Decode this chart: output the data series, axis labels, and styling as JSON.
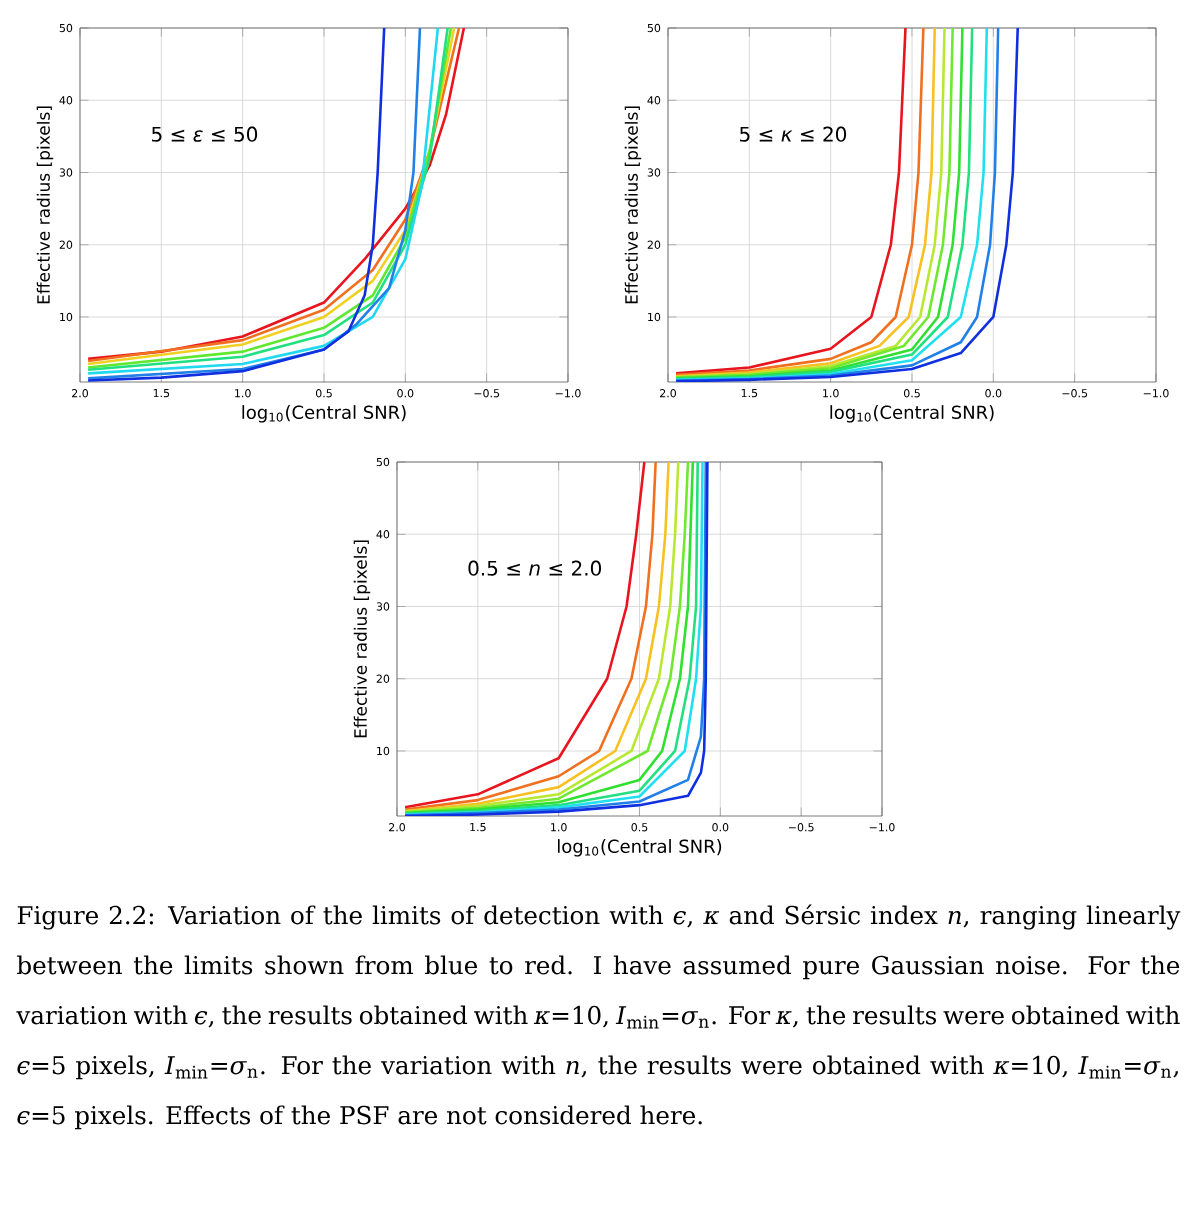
{
  "chart_data": [
    {
      "type": "line",
      "xlabel": "log$_{10}$(Central SNR)",
      "ylabel": "Effective radius [pixels]",
      "annotations": [
        "5 ≤ *ε* ≤ 50"
      ],
      "xlim": [
        2.0,
        -1.0
      ],
      "ylim": [
        1,
        50
      ],
      "xticks": [
        {
          "value": 2.0,
          "label": "2.0"
        },
        {
          "value": 1.5,
          "label": "1.5"
        },
        {
          "value": 1.0,
          "label": "1.0"
        },
        {
          "value": 0.5,
          "label": "0.5"
        },
        {
          "value": 0.0,
          "label": "0.0"
        },
        {
          "value": -0.5,
          "label": "−0.5"
        },
        {
          "value": -1.0,
          "label": "−1.0"
        }
      ],
      "yticks": [
        10,
        20,
        30,
        40,
        50
      ],
      "grid": true,
      "marker": "none",
      "series": [
        {
          "color": "#e8141e",
          "x": [
            1.95,
            1.5,
            1.0,
            0.5,
            0.25,
            0.0,
            -0.15,
            -0.25,
            -0.36
          ],
          "values": [
            4.2,
            5.2,
            7.3,
            12,
            18,
            25,
            31,
            38,
            50
          ]
        },
        {
          "color": "#f07020",
          "x": [
            1.95,
            1.0,
            0.5,
            0.2,
            0.0,
            -0.15,
            -0.33
          ],
          "values": [
            3.9,
            6.8,
            11,
            16.5,
            23.5,
            33,
            50
          ]
        },
        {
          "color": "#f0d020",
          "x": [
            1.95,
            1.0,
            0.5,
            0.2,
            0.0,
            -0.15,
            -0.3
          ],
          "values": [
            3.5,
            6.2,
            10,
            15,
            22,
            33,
            50
          ]
        },
        {
          "color": "#60e830",
          "x": [
            1.95,
            1.0,
            0.5,
            0.2,
            0.0,
            -0.15,
            -0.28
          ],
          "values": [
            3.0,
            5.2,
            8.5,
            13,
            21,
            33,
            50
          ]
        },
        {
          "color": "#20e080",
          "x": [
            1.95,
            1.0,
            0.5,
            0.2,
            0.0,
            -0.15,
            -0.26
          ],
          "values": [
            2.7,
            4.5,
            7.5,
            12,
            20,
            32,
            50
          ]
        },
        {
          "color": "#20d8f0",
          "x": [
            1.95,
            1.0,
            0.5,
            0.2,
            0.0,
            -0.1,
            -0.2
          ],
          "values": [
            2.2,
            3.5,
            6,
            10,
            18,
            28,
            50
          ]
        },
        {
          "color": "#2080e8",
          "x": [
            1.95,
            1.0,
            0.5,
            0.3,
            0.1,
            0.0,
            -0.05,
            -0.09
          ],
          "values": [
            1.5,
            2.8,
            5.5,
            9,
            14,
            22,
            30,
            50
          ]
        },
        {
          "color": "#1030e0",
          "x": [
            1.95,
            1.5,
            1.0,
            0.5,
            0.35,
            0.25,
            0.2,
            0.17,
            0.13
          ],
          "values": [
            1.2,
            1.6,
            2.5,
            5.5,
            8,
            13,
            20,
            30,
            50
          ]
        }
      ]
    },
    {
      "type": "line",
      "xlabel": "log$_{10}$(Central SNR)",
      "ylabel": "Effective radius [pixels]",
      "annotations": [
        "5 ≤ *κ* ≤ 20"
      ],
      "xlim": [
        2.0,
        -1.0
      ],
      "ylim": [
        1,
        50
      ],
      "xticks": [
        {
          "value": 2.0,
          "label": "2.0"
        },
        {
          "value": 1.5,
          "label": "1.5"
        },
        {
          "value": 1.0,
          "label": "1.0"
        },
        {
          "value": 0.5,
          "label": "0.5"
        },
        {
          "value": 0.0,
          "label": "0.0"
        },
        {
          "value": -0.5,
          "label": "−0.5"
        },
        {
          "value": -1.0,
          "label": "−1.0"
        }
      ],
      "yticks": [
        10,
        20,
        30,
        40,
        50
      ],
      "grid": true,
      "marker": "none",
      "series": [
        {
          "color": "#e8141e",
          "x": [
            1.95,
            1.5,
            1.0,
            0.75,
            0.63,
            0.58,
            0.54
          ],
          "values": [
            2.2,
            3.0,
            5.6,
            10,
            20,
            30,
            50
          ]
        },
        {
          "color": "#f07020",
          "x": [
            1.95,
            1.5,
            1.0,
            0.75,
            0.6,
            0.5,
            0.46,
            0.43
          ],
          "values": [
            2.0,
            2.6,
            4.2,
            6.5,
            10,
            20,
            30,
            50
          ]
        },
        {
          "color": "#f8c020",
          "x": [
            1.95,
            1.5,
            1.0,
            0.7,
            0.52,
            0.42,
            0.38,
            0.36
          ],
          "values": [
            1.8,
            2.3,
            3.6,
            6,
            10,
            20,
            30,
            50
          ]
        },
        {
          "color": "#b8e830",
          "x": [
            1.95,
            1.5,
            1.0,
            0.6,
            0.45,
            0.36,
            0.32,
            0.3
          ],
          "values": [
            1.7,
            2.1,
            3.2,
            6,
            10,
            20,
            30,
            50
          ]
        },
        {
          "color": "#70e830",
          "x": [
            1.95,
            1.5,
            1.0,
            0.55,
            0.4,
            0.31,
            0.27,
            0.25
          ],
          "values": [
            1.6,
            2.0,
            2.9,
            6,
            10,
            20,
            30,
            50
          ]
        },
        {
          "color": "#30e030",
          "x": [
            1.95,
            1.5,
            1.0,
            0.5,
            0.34,
            0.25,
            0.21,
            0.19
          ],
          "values": [
            1.5,
            1.8,
            2.6,
            5.5,
            10,
            20,
            30,
            50
          ]
        },
        {
          "color": "#20e080",
          "x": [
            1.95,
            1.5,
            1.0,
            0.5,
            0.28,
            0.19,
            0.15,
            0.13
          ],
          "values": [
            1.4,
            1.7,
            2.4,
            4.8,
            10,
            20,
            30,
            50
          ]
        },
        {
          "color": "#20e0f0",
          "x": [
            1.95,
            1.5,
            1.0,
            0.5,
            0.2,
            0.1,
            0.06,
            0.04
          ],
          "values": [
            1.3,
            1.5,
            2.1,
            4,
            10,
            20,
            30,
            50
          ]
        },
        {
          "color": "#2080e8",
          "x": [
            1.95,
            1.5,
            1.0,
            0.5,
            0.2,
            0.1,
            0.02,
            -0.01,
            -0.03
          ],
          "values": [
            1.2,
            1.4,
            1.9,
            3.3,
            6.5,
            10,
            20,
            30,
            50
          ]
        },
        {
          "color": "#1030e0",
          "x": [
            1.95,
            1.5,
            1.0,
            0.5,
            0.2,
            0.0,
            -0.08,
            -0.12,
            -0.15
          ],
          "values": [
            1.1,
            1.3,
            1.7,
            2.8,
            5,
            10,
            20,
            30,
            50
          ]
        }
      ]
    },
    {
      "type": "line",
      "xlabel": "log$_{10}$(Central SNR)",
      "ylabel": "Effective radius [pixels]",
      "annotations": [
        "0.5 ≤ *n* ≤ 2.0",
        "Figure 2.2: Variation of the limits of detection with *ϵ*, *κ* and Sérsic index *n*, ranging linearly between the limits shown from blue to red. I have assumed pure Gaussian noise. For the variation with *ϵ*, the results obtained with *κ*=10, *I*$_{min}$=*σ*$_{n}$. For *κ*, the results were obtained with *ϵ*=5 pixels, *I*$_{min}$=*σ*$_{n}$. For the variation with *n*, the results were obtained with *κ*=10, *I*$_{min}$=*σ*$_{n}$, *ϵ*=5 pixels. Effects of the PSF are not considered here."
      ],
      "xlim": [
        2.0,
        -1.0
      ],
      "ylim": [
        1,
        50
      ],
      "xticks": [
        {
          "value": 2.0,
          "label": "2.0"
        },
        {
          "value": 1.5,
          "label": "1.5"
        },
        {
          "value": 1.0,
          "label": "1.0"
        },
        {
          "value": 0.5,
          "label": "0.5"
        },
        {
          "value": 0.0,
          "label": "0.0"
        },
        {
          "value": -0.5,
          "label": "−0.5"
        },
        {
          "value": -1.0,
          "label": "−1.0"
        }
      ],
      "yticks": [
        10,
        20,
        30,
        40,
        50
      ],
      "grid": true,
      "marker": "none",
      "series": [
        {
          "color": "#e8141e",
          "x": [
            1.95,
            1.5,
            1.0,
            0.7,
            0.58,
            0.52,
            0.47
          ],
          "values": [
            2.2,
            4,
            9,
            20,
            30,
            40,
            50
          ]
        },
        {
          "color": "#f07020",
          "x": [
            1.95,
            1.5,
            1.0,
            0.75,
            0.55,
            0.46,
            0.42,
            0.4
          ],
          "values": [
            1.9,
            3.2,
            6.5,
            10,
            20,
            30,
            40,
            50
          ]
        },
        {
          "color": "#f8c020",
          "x": [
            1.95,
            1.5,
            1.0,
            0.65,
            0.46,
            0.38,
            0.34,
            0.32
          ],
          "values": [
            1.7,
            2.7,
            5,
            10,
            20,
            30,
            40,
            50
          ]
        },
        {
          "color": "#b8e830",
          "x": [
            1.95,
            1.5,
            1.0,
            0.55,
            0.38,
            0.31,
            0.28,
            0.26
          ],
          "values": [
            1.6,
            2.4,
            4,
            10,
            20,
            30,
            40,
            50
          ]
        },
        {
          "color": "#70e830",
          "x": [
            1.95,
            1.5,
            1.0,
            0.45,
            0.31,
            0.25,
            0.22,
            0.2
          ],
          "values": [
            1.5,
            2.1,
            3.4,
            10,
            20,
            30,
            40,
            50
          ]
        },
        {
          "color": "#30e030",
          "x": [
            1.95,
            1.5,
            1.0,
            0.5,
            0.36,
            0.25,
            0.2,
            0.17
          ],
          "values": [
            1.4,
            1.9,
            2.9,
            6,
            10,
            20,
            30,
            50
          ]
        },
        {
          "color": "#20e080",
          "x": [
            1.95,
            1.5,
            1.0,
            0.5,
            0.28,
            0.19,
            0.15,
            0.14
          ],
          "values": [
            1.3,
            1.7,
            2.5,
            4.5,
            10,
            20,
            30,
            50
          ]
        },
        {
          "color": "#20e0f0",
          "x": [
            1.95,
            1.5,
            1.0,
            0.5,
            0.22,
            0.15,
            0.12,
            0.11
          ],
          "values": [
            1.2,
            1.5,
            2.2,
            3.7,
            10,
            20,
            30,
            50
          ]
        },
        {
          "color": "#2080e8",
          "x": [
            1.95,
            1.5,
            1.0,
            0.5,
            0.2,
            0.12,
            0.1,
            0.09
          ],
          "values": [
            1.1,
            1.4,
            1.9,
            3,
            6,
            12,
            20,
            50
          ]
        },
        {
          "color": "#1030e0",
          "x": [
            1.95,
            1.5,
            1.0,
            0.5,
            0.2,
            0.12,
            0.1,
            0.09,
            0.08
          ],
          "values": [
            1.0,
            1.2,
            1.6,
            2.5,
            3.8,
            7,
            10,
            20,
            50
          ]
        }
      ]
    }
  ]
}
